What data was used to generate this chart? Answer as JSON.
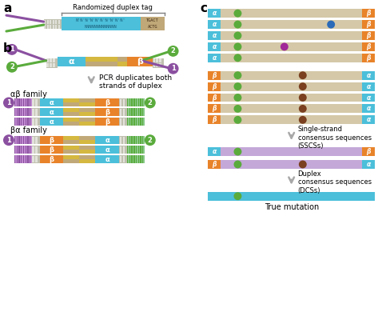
{
  "bg_color": "#ffffff",
  "cyan": "#4CBFDA",
  "orange": "#E8832A",
  "yellow": "#D4B840",
  "tan": "#C0A878",
  "purple": "#8B50A0",
  "green": "#5AAB3C",
  "lavender": "#C4A8D8",
  "blue_dot": "#2A6AB8",
  "brown_dot": "#7A4020",
  "magenta_dot": "#A02898",
  "light_tan_bar": "#D4C8A8",
  "gray_arrow": "#A8A8A8",
  "gray_adapter": "#C0C0B0",
  "tag_label": "Randomized duplex tag",
  "pcr_label": "PCR duplicates both\nstrands of duplex",
  "ab_family": "αβ family",
  "ba_family": "βα family",
  "sscs_label": "Single-strand\nconsensus sequences\n(SSCSs)",
  "dcs_label": "Duplex\nconsensus sequences\n(DCSs)",
  "true_mut": "True mutation",
  "alpha": "α",
  "beta": "β"
}
